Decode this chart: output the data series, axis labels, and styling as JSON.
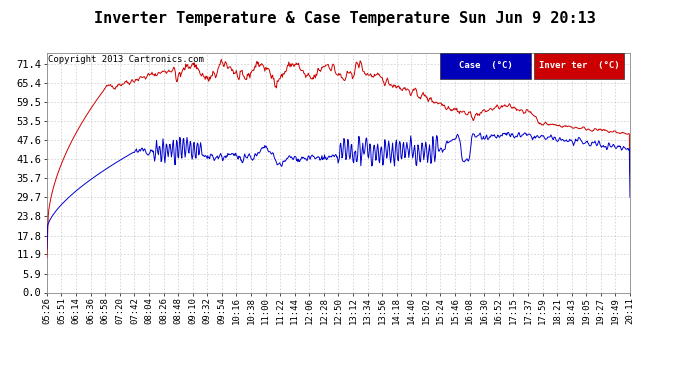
{
  "title": "Inverter Temperature & Case Temperature Sun Jun 9 20:13",
  "copyright": "Copyright 2013 Cartronics.com",
  "yticks": [
    0.0,
    5.9,
    11.9,
    17.8,
    23.8,
    29.7,
    35.7,
    41.6,
    47.6,
    53.5,
    59.5,
    65.4,
    71.4
  ],
  "ymin": 0.0,
  "ymax": 75.0,
  "bg_color": "#ffffff",
  "grid_color": "#bbbbbb",
  "case_color": "#0000cc",
  "inverter_color": "#cc0000",
  "legend_case_bg": "#0000bb",
  "legend_inverter_bg": "#cc0000",
  "legend_case_text": "Case  (°C)",
  "legend_inverter_text": "Inver ter  (°C)",
  "title_fontsize": 11,
  "axis_fontsize": 7.5,
  "copyright_fontsize": 6.5,
  "xtick_labels": [
    "05:26",
    "05:51",
    "06:14",
    "06:36",
    "06:58",
    "07:20",
    "07:42",
    "08:04",
    "08:26",
    "08:48",
    "09:10",
    "09:32",
    "09:54",
    "10:16",
    "10:38",
    "11:00",
    "11:22",
    "11:44",
    "12:06",
    "12:28",
    "12:50",
    "13:12",
    "13:34",
    "13:56",
    "14:18",
    "14:40",
    "15:02",
    "15:24",
    "15:46",
    "16:08",
    "16:30",
    "16:52",
    "17:15",
    "17:37",
    "17:59",
    "18:21",
    "18:43",
    "19:05",
    "19:27",
    "19:49",
    "20:11"
  ]
}
